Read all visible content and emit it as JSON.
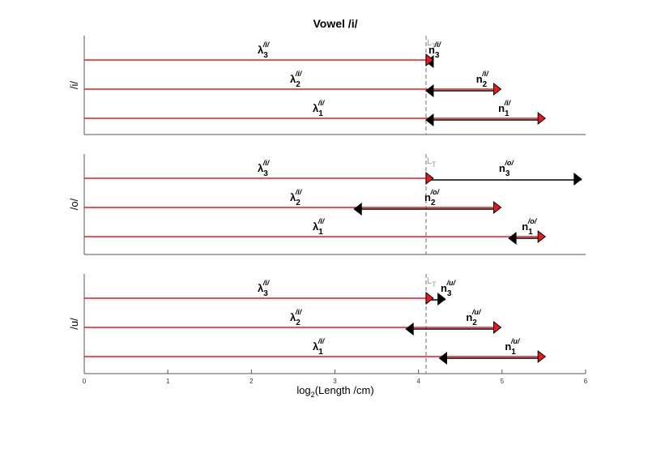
{
  "chart_data": {
    "type": "line",
    "title": "Vowel /i/",
    "xlabel": "log2(Length /cm)",
    "xlabel_main": "log",
    "xlabel_sub": "2",
    "xlabel_rest": "(Length /cm)",
    "xlim": [
      0,
      6
    ],
    "xticks": [
      "0",
      "1",
      "2",
      "3",
      "4",
      "5",
      "6"
    ],
    "grid": false,
    "reference_line": {
      "label": "L",
      "label_sub": "T",
      "x": 4.09,
      "style": "dashed",
      "color": "#888888"
    },
    "colors": {
      "lambda": "#e8191e",
      "n_arrow": "#000000",
      "red_head": "#e8191e",
      "axis": "#555555"
    },
    "panels": [
      {
        "ylabel": "/i/",
        "rows": [
          {
            "lambda_label": "λ",
            "lambda_sub": "3",
            "lambda_sup": "/i/",
            "lambda_end": 4.09,
            "n_label": "n",
            "n_sub": "3",
            "n_sup": "/i/",
            "n_from": 4.09,
            "n_to": 4.14,
            "n_dir": "left"
          },
          {
            "lambda_label": "λ",
            "lambda_sub": "2",
            "lambda_sup": "/i/",
            "lambda_end": 4.9,
            "n_label": "n",
            "n_sub": "2",
            "n_sup": "/i/",
            "n_from": 4.09,
            "n_to": 4.9,
            "n_dir": "left"
          },
          {
            "lambda_label": "λ",
            "lambda_sub": "1",
            "lambda_sup": "/i/",
            "lambda_end": 5.43,
            "n_label": "n",
            "n_sub": "1",
            "n_sup": "/i/",
            "n_from": 4.09,
            "n_to": 5.43,
            "n_dir": "left"
          }
        ]
      },
      {
        "ylabel": "/o/",
        "rows": [
          {
            "lambda_label": "λ",
            "lambda_sub": "3",
            "lambda_sup": "/i/",
            "lambda_end": 4.09,
            "n_label": "n",
            "n_sub": "3",
            "n_sup": "/o/",
            "n_from": 4.09,
            "n_to": 5.95,
            "n_dir": "right"
          },
          {
            "lambda_label": "λ",
            "lambda_sub": "2",
            "lambda_sup": "/i/",
            "lambda_end": 4.9,
            "n_label": "n",
            "n_sub": "2",
            "n_sup": "/o/",
            "n_from": 3.23,
            "n_to": 4.9,
            "n_dir": "left"
          },
          {
            "lambda_label": "λ",
            "lambda_sub": "1",
            "lambda_sup": "/i/",
            "lambda_end": 5.43,
            "n_label": "n",
            "n_sub": "1",
            "n_sup": "/o/",
            "n_from": 5.08,
            "n_to": 5.43,
            "n_dir": "left"
          }
        ]
      },
      {
        "ylabel": "/u/",
        "rows": [
          {
            "lambda_label": "λ",
            "lambda_sub": "3",
            "lambda_sup": "/i/",
            "lambda_end": 4.09,
            "n_label": "n",
            "n_sub": "3",
            "n_sup": "/u/",
            "n_from": 4.09,
            "n_to": 4.32,
            "n_dir": "right"
          },
          {
            "lambda_label": "λ",
            "lambda_sub": "2",
            "lambda_sup": "/i/",
            "lambda_end": 4.9,
            "n_label": "n",
            "n_sub": "2",
            "n_sup": "/u/",
            "n_from": 3.85,
            "n_to": 4.9,
            "n_dir": "left"
          },
          {
            "lambda_label": "λ",
            "lambda_sub": "1",
            "lambda_sup": "/i/",
            "lambda_end": 5.43,
            "n_label": "n",
            "n_sub": "1",
            "n_sup": "/u/",
            "n_from": 4.25,
            "n_to": 5.43,
            "n_dir": "left"
          }
        ]
      }
    ]
  }
}
